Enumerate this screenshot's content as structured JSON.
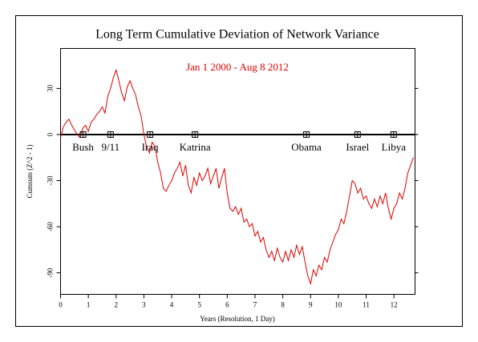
{
  "chart_data": {
    "type": "line",
    "title": "Long Term Cumulative Deviation of Network Variance",
    "subtitle": "Jan 1 2000 - Aug 8 2012",
    "xlabel": "Years (Resolution, 1 Day)",
    "ylabel": "Cumsum (Z^2 - 1)",
    "xlim": [
      0,
      12.76
    ],
    "ylim": [
      -104,
      56
    ],
    "xticks": [
      0,
      1,
      2,
      3,
      4,
      5,
      6,
      7,
      8,
      9,
      10,
      11,
      12
    ],
    "yticks": [
      -90,
      -60,
      -30,
      0,
      30
    ],
    "annotations": [
      {
        "label": "Bush",
        "x": 0.81
      },
      {
        "label": "9/11",
        "x": 1.8
      },
      {
        "label": "Iraq",
        "x": 3.22
      },
      {
        "label": "Katrina",
        "x": 4.84
      },
      {
        "label": "Obama",
        "x": 8.85
      },
      {
        "label": "Israel",
        "x": 10.69
      },
      {
        "label": "Libya",
        "x": 11.99
      }
    ],
    "x": [
      0,
      0.1,
      0.2,
      0.3,
      0.4,
      0.5,
      0.6,
      0.7,
      0.8,
      0.9,
      1,
      1.1,
      1.2,
      1.3,
      1.4,
      1.5,
      1.6,
      1.7,
      1.8,
      1.9,
      2,
      2.1,
      2.2,
      2.3,
      2.4,
      2.5,
      2.6,
      2.7,
      2.8,
      2.9,
      3,
      3.1,
      3.2,
      3.3,
      3.4,
      3.5,
      3.6,
      3.7,
      3.8,
      3.9,
      4,
      4.1,
      4.2,
      4.3,
      4.4,
      4.5,
      4.6,
      4.7,
      4.8,
      4.9,
      5,
      5.1,
      5.2,
      5.3,
      5.4,
      5.5,
      5.6,
      5.7,
      5.8,
      5.9,
      6,
      6.1,
      6.2,
      6.3,
      6.4,
      6.5,
      6.6,
      6.7,
      6.8,
      6.9,
      7,
      7.1,
      7.2,
      7.3,
      7.4,
      7.5,
      7.6,
      7.7,
      7.8,
      7.9,
      8,
      8.1,
      8.2,
      8.3,
      8.4,
      8.5,
      8.6,
      8.7,
      8.8,
      8.9,
      9,
      9.1,
      9.2,
      9.3,
      9.4,
      9.5,
      9.6,
      9.7,
      9.8,
      9.9,
      10,
      10.1,
      10.2,
      10.3,
      10.4,
      10.5,
      10.6,
      10.7,
      10.8,
      10.9,
      11,
      11.1,
      11.2,
      11.3,
      11.4,
      11.5,
      11.6,
      11.7,
      11.8,
      11.9,
      12,
      12.1,
      12.2,
      12.3,
      12.4,
      12.5,
      12.6,
      12.7
    ],
    "series": [
      {
        "color": "#e00000",
        "values": [
          -2,
          5,
          8,
          10,
          6,
          3,
          0,
          -2,
          4,
          6,
          2,
          8,
          10,
          13,
          15,
          18,
          14,
          25,
          30,
          37,
          42,
          35,
          27,
          22,
          31,
          35,
          30,
          26,
          18,
          12,
          0,
          -8,
          -12,
          -5,
          -8,
          -18,
          -25,
          -35,
          -37,
          -33,
          -30,
          -25,
          -22,
          -18,
          -27,
          -20,
          -33,
          -38,
          -28,
          -33,
          -25,
          -30,
          -27,
          -22,
          -32,
          -27,
          -22,
          -35,
          -28,
          -22,
          -38,
          -48,
          -50,
          -47,
          -52,
          -48,
          -57,
          -55,
          -60,
          -58,
          -66,
          -63,
          -70,
          -67,
          -75,
          -80,
          -76,
          -82,
          -74,
          -80,
          -83,
          -76,
          -82,
          -75,
          -80,
          -72,
          -78,
          -73,
          -83,
          -92,
          -97,
          -88,
          -92,
          -85,
          -88,
          -80,
          -83,
          -75,
          -70,
          -65,
          -62,
          -55,
          -58,
          -50,
          -40,
          -30,
          -32,
          -38,
          -35,
          -42,
          -40,
          -45,
          -48,
          -42,
          -47,
          -40,
          -45,
          -38,
          -48,
          -55,
          -48,
          -45,
          -38,
          -42,
          -35,
          -25,
          -20,
          -15
        ]
      }
    ]
  }
}
